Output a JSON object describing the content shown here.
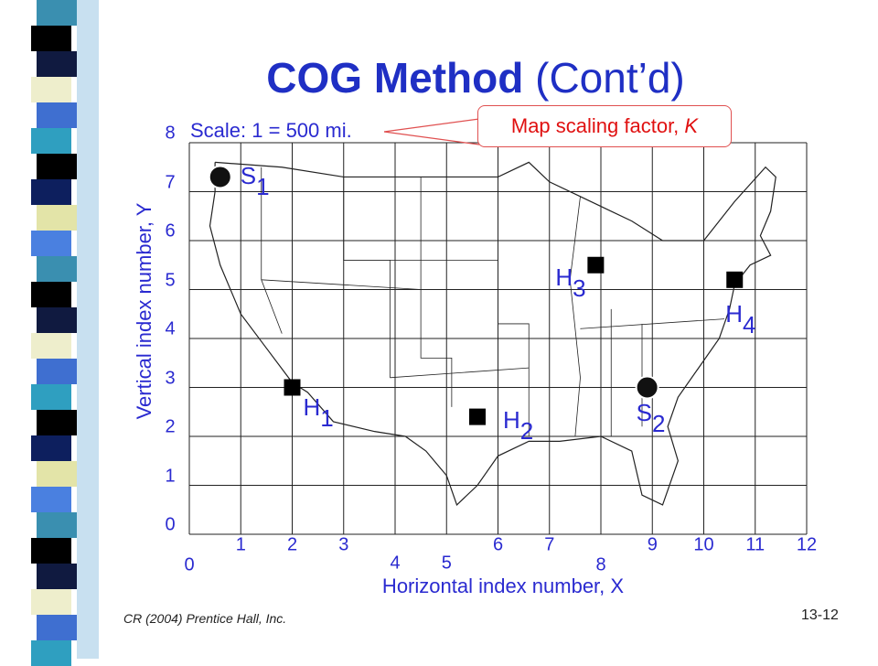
{
  "slide": {
    "title_bold": "COG Method",
    "title_rest": " (Cont’d)",
    "scale_label": "Scale: 1  =  500 mi.",
    "callout_text": "Map scaling factor, ",
    "callout_italic": "K",
    "credit": "CR (2004) Prentice Hall, Inc.",
    "slide_number": "13-12"
  },
  "colors": {
    "title": "#1f2fc4",
    "axis_text": "#2a2ad0",
    "callout_text": "#e01010",
    "callout_border": "#e05050",
    "map_lines": "#222222"
  },
  "map": {
    "y_axis_title": "Vertical index number, Y",
    "x_axis_title": "Horizontal index number, X",
    "x_ticks": [
      "0",
      "1",
      "2",
      "3",
      "4",
      "5",
      "6",
      "7",
      "8",
      "9",
      "10",
      "11",
      "12"
    ],
    "y_ticks": [
      "0",
      "1",
      "2",
      "3",
      "4",
      "5",
      "6",
      "7",
      "8"
    ],
    "points": [
      {
        "label": "S",
        "sub": "1",
        "marker": "circle",
        "x": 0.6,
        "y": 7.3
      },
      {
        "label": "S",
        "sub": "2",
        "marker": "circle",
        "x": 8.9,
        "y": 3.0
      },
      {
        "label": "H",
        "sub": "1",
        "marker": "square",
        "x": 2.0,
        "y": 3.0
      },
      {
        "label": "H",
        "sub": "2",
        "marker": "square",
        "x": 5.6,
        "y": 2.4
      },
      {
        "label": "H",
        "sub": "3",
        "marker": "square",
        "x": 7.9,
        "y": 5.5
      },
      {
        "label": "H",
        "sub": "4",
        "marker": "square",
        "x": 10.6,
        "y": 5.2
      }
    ]
  }
}
